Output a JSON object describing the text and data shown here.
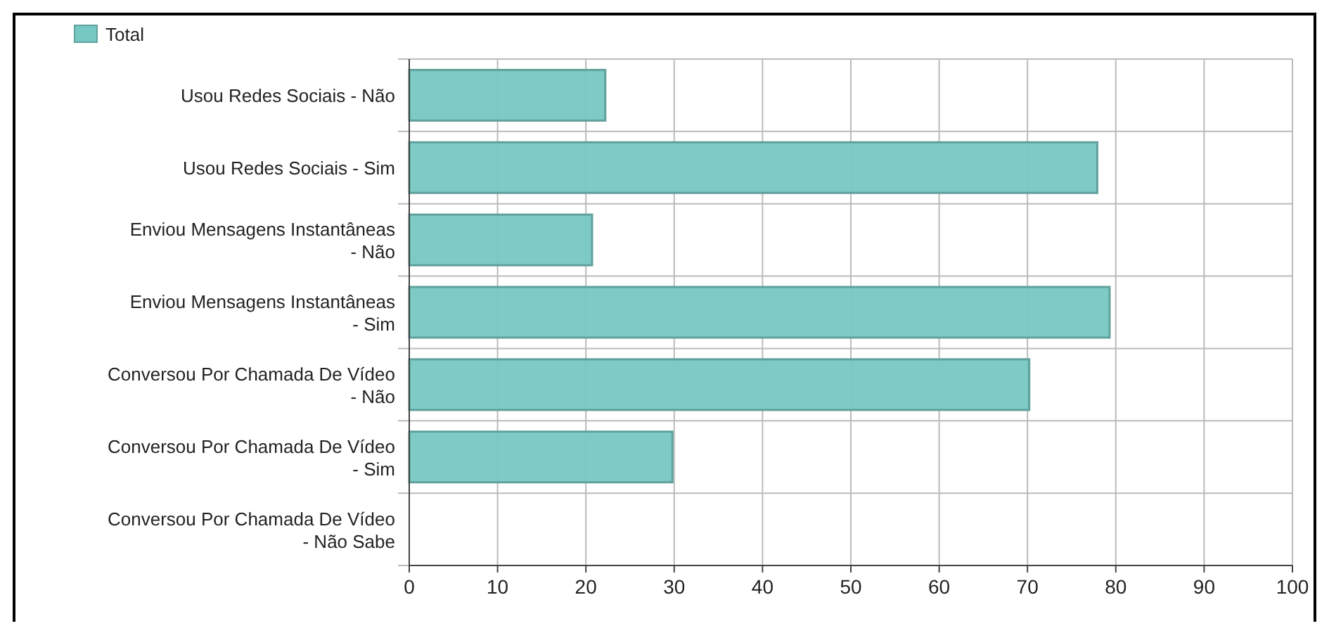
{
  "chart_data": {
    "type": "bar",
    "orientation": "horizontal",
    "categories": [
      "Usou Redes Sociais - Não",
      "Usou Redes Sociais - Sim",
      "Enviou Mensagens Instantâneas - Não",
      "Enviou Mensagens Instantâneas - Sim",
      "Conversou Por Chamada De Vídeo - Não",
      "Conversou Por Chamada De Vídeo - Sim",
      "Conversou Por Chamada De Vídeo - Não Sabe"
    ],
    "series": [
      {
        "name": "Total",
        "color": "#77c7c2",
        "values": [
          22.2,
          77.9,
          20.7,
          79.3,
          70.2,
          29.8,
          0
        ]
      }
    ],
    "xlim": [
      0,
      100
    ],
    "xticks": [
      0,
      10,
      20,
      30,
      40,
      50,
      60,
      70,
      80,
      90,
      100
    ],
    "grid": true,
    "legend": "top left"
  }
}
